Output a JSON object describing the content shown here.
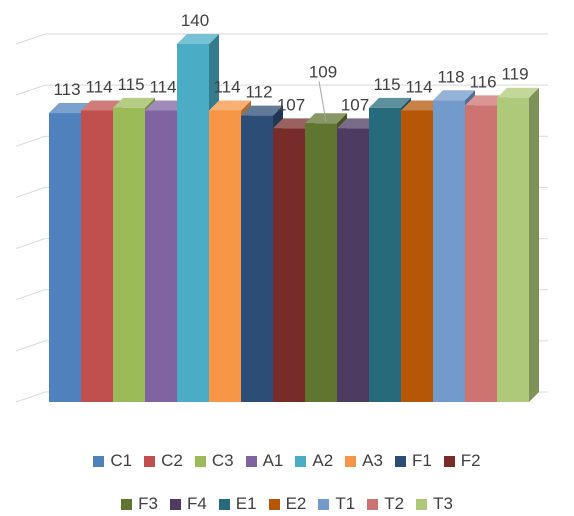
{
  "chart_data": {
    "type": "bar",
    "style": "3d-clustered-column",
    "categories": [
      "C1",
      "C2",
      "C3",
      "A1",
      "A2",
      "A3",
      "F1",
      "F2",
      "F3",
      "F4",
      "E1",
      "E2",
      "T1",
      "T2",
      "T3"
    ],
    "series": [
      {
        "name": "C1",
        "value": 113,
        "color": "#4f81bd"
      },
      {
        "name": "C2",
        "value": 114,
        "color": "#c0504d"
      },
      {
        "name": "C3",
        "value": 115,
        "color": "#9bbb59"
      },
      {
        "name": "A1",
        "value": 114,
        "color": "#8064a2"
      },
      {
        "name": "A2",
        "value": 140,
        "color": "#4bacc6"
      },
      {
        "name": "A3",
        "value": 114,
        "color": "#f79646"
      },
      {
        "name": "F1",
        "value": 112,
        "color": "#2c4d75"
      },
      {
        "name": "F2",
        "value": 107,
        "color": "#772c2a"
      },
      {
        "name": "F3",
        "value": 109,
        "color": "#5f7530"
      },
      {
        "name": "F4",
        "value": 107,
        "color": "#4d3b62"
      },
      {
        "name": "E1",
        "value": 115,
        "color": "#276a7c"
      },
      {
        "name": "E2",
        "value": 114,
        "color": "#b65708"
      },
      {
        "name": "T1",
        "value": 118,
        "color": "#729aca"
      },
      {
        "name": "T2",
        "value": 116,
        "color": "#cd7371"
      },
      {
        "name": "T3",
        "value": 119,
        "color": "#afc97a"
      }
    ],
    "ylim": [
      0,
      140
    ],
    "grid": true,
    "legend_position": "bottom",
    "title": "",
    "xlabel": "",
    "ylabel": ""
  }
}
